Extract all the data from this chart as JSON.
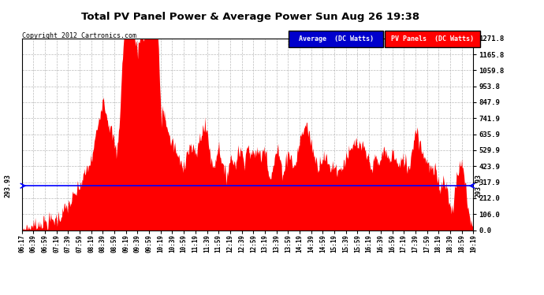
{
  "title": "Total PV Panel Power & Average Power Sun Aug 26 19:38",
  "copyright": "Copyright 2012 Cartronics.com",
  "ylabel_right_ticks": [
    0.0,
    106.0,
    212.0,
    317.9,
    423.9,
    529.9,
    635.9,
    741.9,
    847.9,
    953.8,
    1059.8,
    1165.8,
    1271.8
  ],
  "ymax": 1271.8,
  "ymin": 0.0,
  "average_line_y": 293.93,
  "average_label": "293.93",
  "fill_color": "#ff0000",
  "avg_line_color": "#0000ff",
  "grid_color": "#aaaaaa",
  "plot_bg_color": "#ffffff",
  "fig_bg_color": "#ffffff",
  "legend_avg_bg": "#0000cc",
  "legend_pv_bg": "#ff0000",
  "x_tick_labels": [
    "06:17",
    "06:39",
    "06:59",
    "07:19",
    "07:39",
    "07:59",
    "08:19",
    "08:39",
    "08:59",
    "09:19",
    "09:39",
    "09:59",
    "10:19",
    "10:39",
    "10:59",
    "11:19",
    "11:39",
    "11:59",
    "12:19",
    "12:39",
    "12:59",
    "13:19",
    "13:39",
    "13:59",
    "14:19",
    "14:39",
    "14:59",
    "15:19",
    "15:39",
    "15:59",
    "16:19",
    "16:39",
    "16:59",
    "17:19",
    "17:39",
    "17:59",
    "18:19",
    "18:39",
    "18:59",
    "19:19"
  ],
  "figsize": [
    6.9,
    3.75
  ],
  "dpi": 100
}
